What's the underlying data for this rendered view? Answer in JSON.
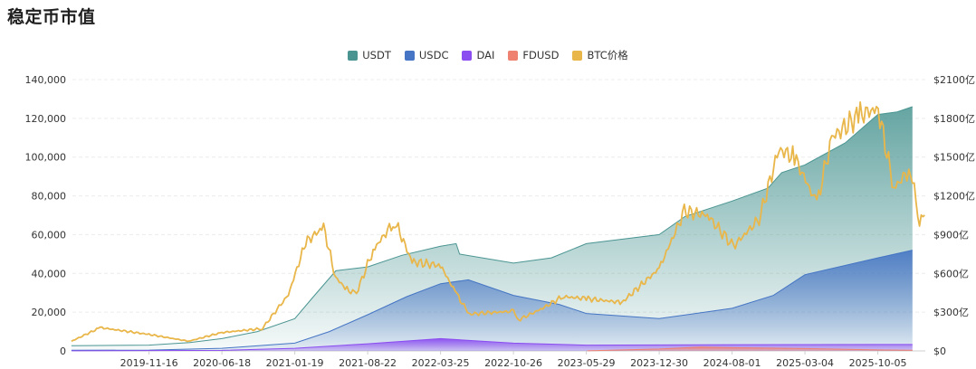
{
  "title": "稳定币市值",
  "colors": {
    "USDT": "#4a9592",
    "USDC": "#4575c4",
    "DAI": "#8b4df0",
    "FDUSD": "#ef8171",
    "BTC": "#e9b64a"
  },
  "chart_data": {
    "type": "area",
    "title": "稳定币市值",
    "x_tick_labels": [
      "2019-11-16",
      "2020-06-18",
      "2021-01-19",
      "2021-08-22",
      "2022-03-25",
      "2022-10-26",
      "2023-05-29",
      "2023-12-30",
      "2024-08-01",
      "2025-03-04",
      "2025-10-05"
    ],
    "y_left": {
      "ylim": [
        0,
        140000
      ],
      "tick_labels": [
        "0",
        "20,000",
        "40,000",
        "60,000",
        "80,000",
        "100,000",
        "120,000",
        "140,000"
      ]
    },
    "y_right": {
      "ylim": [
        0,
        2100
      ],
      "unit": "亿",
      "tick_labels": [
        "$0",
        "$300亿",
        "$600亿",
        "$900亿",
        "$1200亿",
        "$1500亿",
        "$1800亿",
        "$2100亿"
      ]
    },
    "legend_position": "top",
    "grid": true,
    "series": [
      {
        "name": "USDT",
        "chart": "area",
        "axis": "right",
        "x": [
          "2019-04-01",
          "2019-11-16",
          "2020-03-15",
          "2020-06-18",
          "2020-10-01",
          "2021-01-19",
          "2021-03-15",
          "2021-05-20",
          "2021-08-22",
          "2021-12-01",
          "2022-03-25",
          "2022-05-10",
          "2022-05-20",
          "2022-10-26",
          "2023-02-15",
          "2023-05-29",
          "2023-12-30",
          "2024-03-15",
          "2024-08-01",
          "2024-11-15",
          "2024-12-25",
          "2025-03-04",
          "2025-07-01",
          "2025-10-05",
          "2025-12-01",
          "2026-01-15"
        ],
        "values": [
          40,
          45,
          65,
          95,
          150,
          250,
          420,
          620,
          650,
          740,
          810,
          830,
          750,
          680,
          720,
          830,
          900,
          1040,
          1160,
          1260,
          1380,
          1440,
          1610,
          1830,
          1850,
          1890
        ]
      },
      {
        "name": "USDC",
        "chart": "area",
        "axis": "right",
        "x": [
          "2019-04-01",
          "2019-11-16",
          "2020-06-18",
          "2021-01-19",
          "2021-05-01",
          "2021-08-22",
          "2021-12-15",
          "2022-03-25",
          "2022-06-15",
          "2022-10-26",
          "2023-03-10",
          "2023-05-29",
          "2023-12-30",
          "2024-08-01",
          "2024-12-01",
          "2025-03-04",
          "2025-10-05",
          "2026-01-15"
        ],
        "values": [
          5,
          6,
          20,
          60,
          150,
          280,
          420,
          520,
          550,
          430,
          360,
          290,
          250,
          330,
          430,
          590,
          720,
          780
        ]
      },
      {
        "name": "DAI",
        "chart": "area",
        "axis": "right",
        "x": [
          "2019-04-01",
          "2020-06-18",
          "2021-01-19",
          "2021-08-22",
          "2022-03-25",
          "2022-10-26",
          "2023-05-29",
          "2024-08-01",
          "2025-10-05",
          "2026-01-15"
        ],
        "values": [
          1,
          4,
          20,
          55,
          95,
          60,
          45,
          48,
          50,
          50
        ]
      },
      {
        "name": "FDUSD",
        "chart": "area",
        "axis": "right",
        "x": [
          "2023-06-01",
          "2023-12-30",
          "2024-05-01",
          "2024-08-01",
          "2025-03-04",
          "2025-10-05",
          "2026-01-15"
        ],
        "values": [
          1,
          15,
          30,
          25,
          18,
          8,
          5
        ]
      },
      {
        "name": "BTC价格",
        "chart": "line",
        "axis": "left",
        "x": [
          "2019-04-01",
          "2019-06-25",
          "2019-11-16",
          "2020-03-12",
          "2020-06-18",
          "2020-10-15",
          "2020-12-31",
          "2021-02-20",
          "2021-04-14",
          "2021-05-19",
          "2021-06-22",
          "2021-07-20",
          "2021-09-07",
          "2021-11-10",
          "2021-12-31",
          "2022-03-25",
          "2022-05-12",
          "2022-06-18",
          "2022-10-26",
          "2022-11-10",
          "2023-01-20",
          "2023-03-20",
          "2023-05-29",
          "2023-09-11",
          "2023-12-30",
          "2024-03-13",
          "2024-05-20",
          "2024-08-05",
          "2024-10-20",
          "2024-12-17",
          "2025-02-01",
          "2025-04-08",
          "2025-05-22",
          "2025-08-14",
          "2025-10-06",
          "2025-11-21",
          "2026-01-10",
          "2026-02-05",
          "2026-02-20"
        ],
        "values": [
          5000,
          12000,
          8500,
          5000,
          9500,
          11500,
          29000,
          56000,
          64000,
          38000,
          31500,
          29800,
          52000,
          67000,
          46000,
          44000,
          29000,
          19000,
          20500,
          16000,
          22000,
          28000,
          27000,
          25000,
          42500,
          72000,
          70000,
          54000,
          68000,
          104000,
          100000,
          76000,
          110000,
          122000,
          125000,
          84000,
          94000,
          66000,
          70000
        ]
      }
    ]
  }
}
